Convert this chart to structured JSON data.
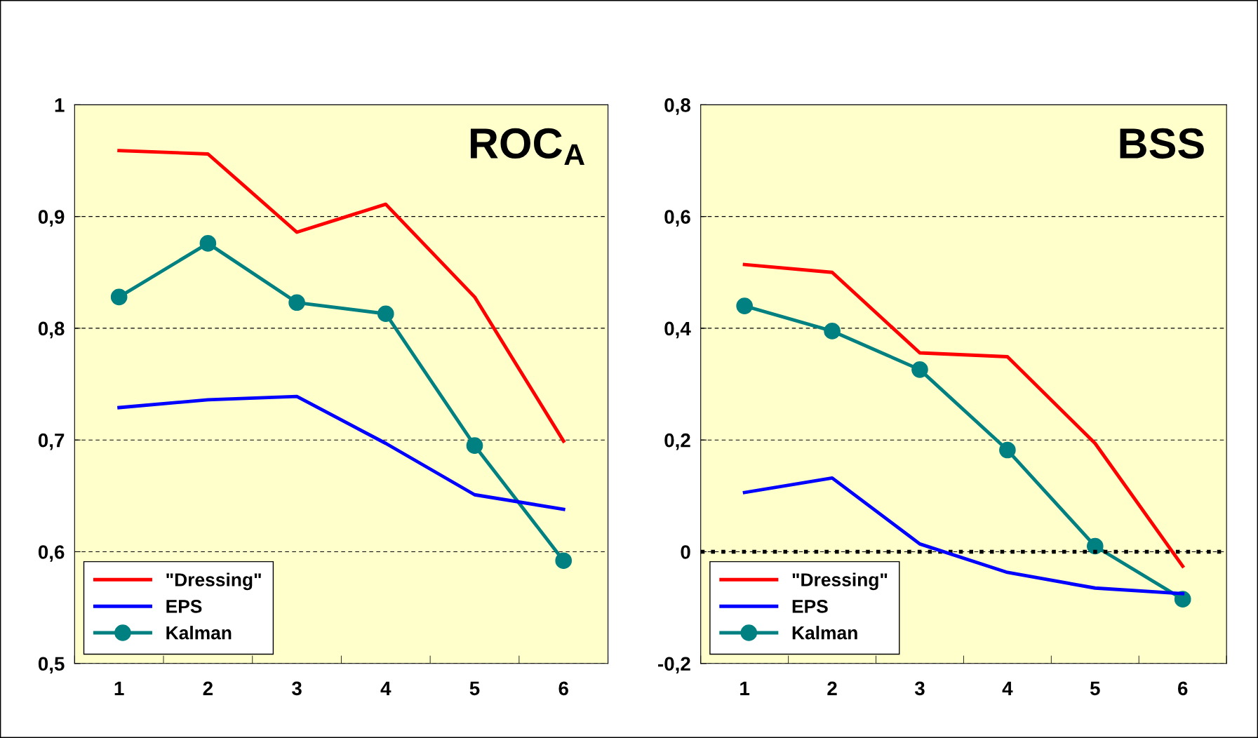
{
  "chart_data": [
    {
      "type": "line",
      "title": "ROC$_{A}$",
      "categories": [
        "1",
        "2",
        "3",
        "4",
        "5",
        "6"
      ],
      "ylim": [
        0.5,
        1
      ],
      "yticks": [
        {
          "value": 0.5,
          "label": "0,5"
        },
        {
          "value": 0.6,
          "label": "0,6"
        },
        {
          "value": 0.7,
          "label": "0,7"
        },
        {
          "value": 0.8,
          "label": "0,8"
        },
        {
          "value": 0.9,
          "label": "0,9"
        },
        {
          "value": 1,
          "label": "1"
        }
      ],
      "grid": "y",
      "legend": "bottom left",
      "line_style": "solid",
      "series": [
        {
          "name": "\"Dressing\"",
          "color": "#ff0000",
          "marker": "none",
          "values": [
            0.959,
            0.956,
            0.886,
            0.911,
            0.828,
            0.699
          ]
        },
        {
          "name": "EPS",
          "color": "#0000ff",
          "marker": "none",
          "values": [
            0.729,
            0.736,
            0.739,
            0.697,
            0.651,
            0.638
          ]
        },
        {
          "name": "Kalman",
          "color": "#008080",
          "marker": "circle",
          "values": [
            0.828,
            0.876,
            0.823,
            0.813,
            0.695,
            0.592
          ]
        }
      ]
    },
    {
      "type": "line",
      "title": "BSS",
      "categories": [
        "1",
        "2",
        "3",
        "4",
        "5",
        "6"
      ],
      "ylim": [
        -0.2,
        0.8
      ],
      "yticks": [
        {
          "value": -0.2,
          "label": "-0,2"
        },
        0,
        {
          "value": 0.2,
          "label": "0,2"
        },
        {
          "value": 0.4,
          "label": "0,4"
        },
        {
          "value": 0.6,
          "label": "0,6"
        },
        {
          "value": 0.8,
          "label": "0,8"
        }
      ],
      "grid": "y",
      "legend": "bottom left",
      "line_style": "solid",
      "ref_lines": [
        {
          "axis": "y",
          "value": 0,
          "label": null,
          "color": "#000000",
          "line_style": "dotted"
        }
      ],
      "series": [
        {
          "name": "\"Dressing\"",
          "color": "#ff0000",
          "marker": "none",
          "values": [
            0.514,
            0.5,
            0.356,
            0.349,
            0.194,
            -0.026
          ]
        },
        {
          "name": "EPS",
          "color": "#0000ff",
          "marker": "none",
          "values": [
            0.106,
            0.132,
            0.014,
            -0.037,
            -0.065,
            -0.075
          ]
        },
        {
          "name": "Kalman",
          "color": "#008080",
          "marker": "circle",
          "values": [
            0.44,
            0.395,
            0.326,
            0.182,
            0.01,
            -0.085
          ]
        }
      ]
    }
  ]
}
